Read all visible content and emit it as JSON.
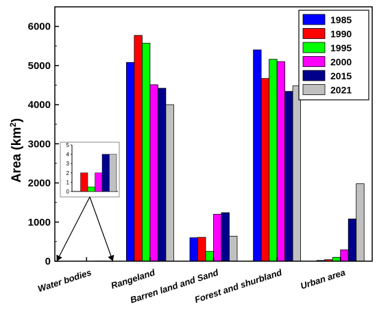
{
  "chart_data": {
    "type": "bar",
    "title": "",
    "xlabel": "",
    "ylabel": "Area (km",
    "ylabel_sup": "2",
    "ylabel_close": ")",
    "ylim": [
      0,
      6500
    ],
    "yticks": [
      0,
      1000,
      2000,
      3000,
      4000,
      5000,
      6000
    ],
    "grid": false,
    "legend_position": "top-right",
    "categories": [
      "Water bodies",
      "Rangeland",
      "Barren land and Sand",
      "Forest and shurbland",
      "Urban area"
    ],
    "series": [
      {
        "name": "1985",
        "color": "#0000ff",
        "values": [
          0,
          5080,
          600,
          5400,
          20
        ]
      },
      {
        "name": "1990",
        "color": "#ff0000",
        "values": [
          2,
          5770,
          610,
          4670,
          40
        ]
      },
      {
        "name": "1995",
        "color": "#00ff00",
        "values": [
          0.5,
          5570,
          250,
          5160,
          100
        ]
      },
      {
        "name": "2000",
        "color": "#ff00ff",
        "values": [
          2,
          4510,
          1200,
          5100,
          290
        ]
      },
      {
        "name": "2015",
        "color": "#00008b",
        "values": [
          4,
          4420,
          1240,
          4340,
          1080
        ]
      },
      {
        "name": "2021",
        "color": "#c0c0c0",
        "values": [
          4,
          4000,
          640,
          4480,
          1980
        ]
      }
    ],
    "inset": {
      "category": "Water bodies",
      "ylim": [
        0,
        5
      ],
      "yticks": [
        0,
        1,
        2,
        3,
        4,
        5
      ]
    }
  }
}
